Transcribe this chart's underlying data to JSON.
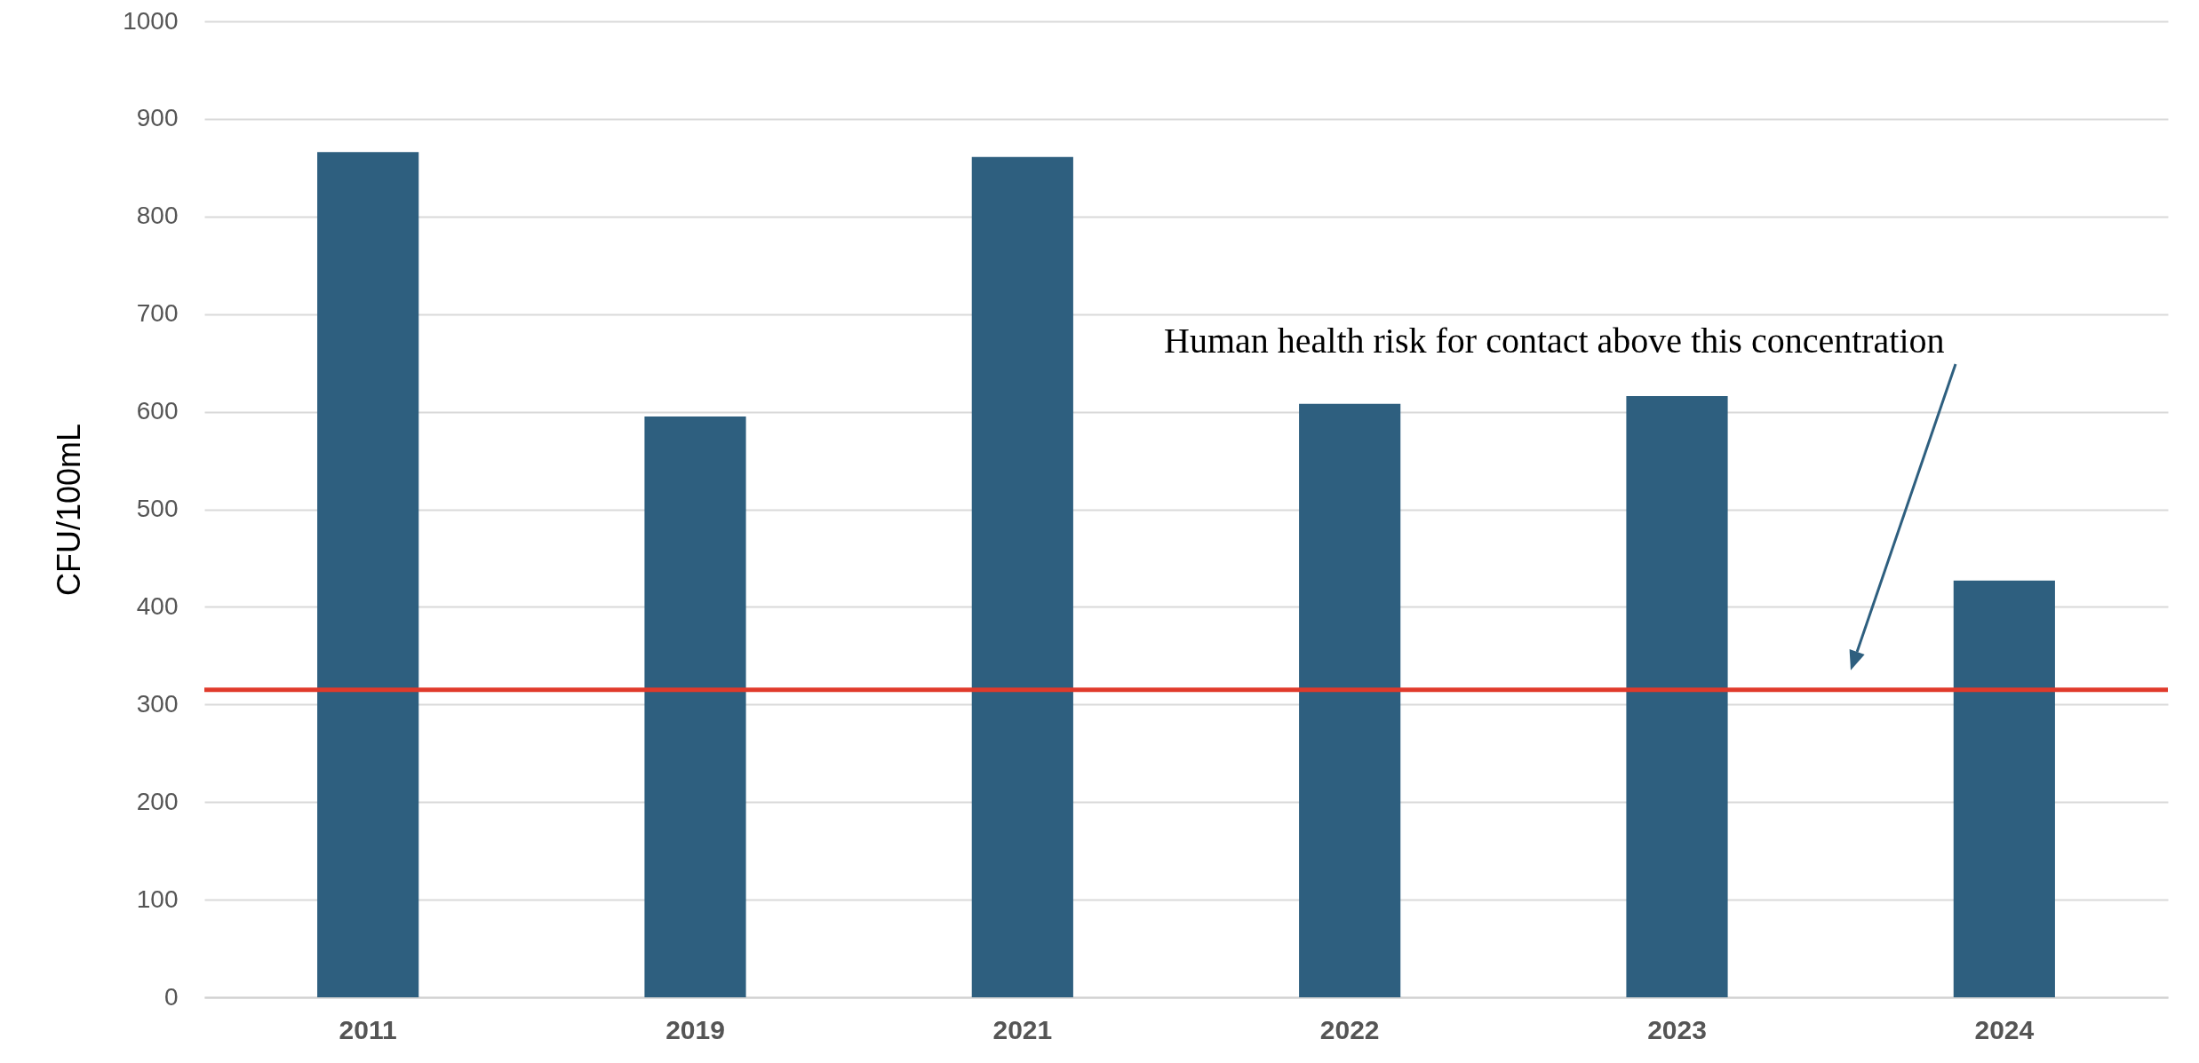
{
  "chart_data": {
    "type": "bar",
    "ylabel": "CFU/100mL",
    "categories": [
      "2011",
      "2019",
      "2021",
      "2022",
      "2023",
      "2024"
    ],
    "values": [
      866,
      595,
      861,
      608,
      616,
      427
    ],
    "color": "#2e5f7f",
    "ylim": [
      0,
      1000
    ],
    "yticks": [
      0,
      100,
      200,
      300,
      400,
      500,
      600,
      700,
      800,
      900,
      1000
    ],
    "grid": "y",
    "ref_lines": [
      {
        "axis": "y",
        "value": 315,
        "color": "#e03a2b"
      }
    ],
    "annotations": [
      "Human health risk for contact above this concentration"
    ]
  }
}
